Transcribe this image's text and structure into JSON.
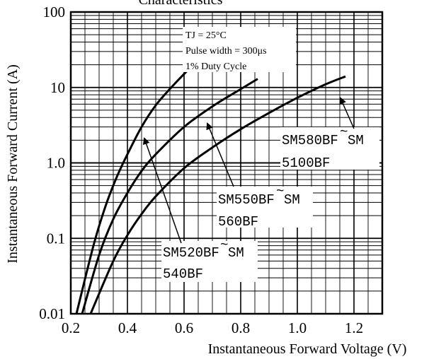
{
  "chart_data": {
    "type": "line",
    "title": "Characteristics",
    "xlabel": "Instantaneous Forward Voltage (V)",
    "ylabel": "Instantaneous Forward Current (A)",
    "xlim": [
      0.2,
      1.3
    ],
    "ylim": [
      0.01,
      100
    ],
    "yscale": "log",
    "grid": true,
    "x_ticks": [
      "0.2",
      "0.4",
      "0.6",
      "0.8",
      "1.0",
      "1.2"
    ],
    "y_ticks": [
      "0.01",
      "0.1",
      "1.0",
      "10",
      "100"
    ],
    "annotations": [
      "TJ = 25°C",
      "Pulse width = 300μs",
      "1% Duty Cycle"
    ],
    "series": [
      {
        "name": "SM520BF~SM540BF",
        "x": [
          0.22,
          0.28,
          0.32,
          0.36,
          0.4,
          0.45,
          0.5,
          0.56,
          0.62
        ],
        "y": [
          0.01,
          0.08,
          0.25,
          0.62,
          1.3,
          3.0,
          5.8,
          10.5,
          18.0
        ]
      },
      {
        "name": "SM550BF~SM560BF",
        "x": [
          0.24,
          0.3,
          0.35,
          0.4,
          0.45,
          0.5,
          0.6,
          0.7,
          0.8,
          0.86
        ],
        "y": [
          0.01,
          0.06,
          0.18,
          0.4,
          0.78,
          1.3,
          3.0,
          5.6,
          9.5,
          13.0
        ]
      },
      {
        "name": "SM580BF~SM5100BF",
        "x": [
          0.27,
          0.35,
          0.4,
          0.45,
          0.5,
          0.6,
          0.7,
          0.8,
          0.9,
          1.0,
          1.1,
          1.17
        ],
        "y": [
          0.01,
          0.05,
          0.11,
          0.21,
          0.36,
          0.85,
          1.6,
          2.8,
          4.6,
          7.3,
          11.0,
          14.0
        ]
      }
    ],
    "series_labels": [
      {
        "line1": "SM520BF",
        "line2": "SM",
        "line3": "540BF"
      },
      {
        "line1": "SM550BF",
        "line2": "SM",
        "line3": "560BF"
      },
      {
        "line1": "SM580BF",
        "line2": "SM",
        "line3": "5100BF"
      }
    ]
  }
}
